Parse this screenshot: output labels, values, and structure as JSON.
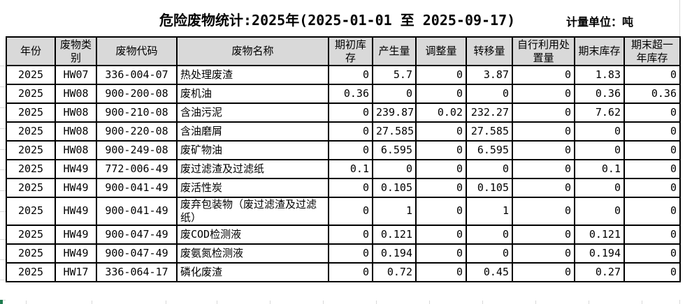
{
  "title": "危险废物统计:2025年(2025-01-01 至 2025-09-17)",
  "unit_label": "计量单位：吨",
  "table": {
    "columns": [
      "年份",
      "废物类别",
      "废物代码",
      "废物名称",
      "期初库存",
      "产生量",
      "调整量",
      "转移量",
      "自行利用处置量",
      "期末库存",
      "期末超一年库存"
    ],
    "rows": [
      {
        "year": "2025",
        "category": "HW07",
        "code": "336-004-07",
        "name": "热处理废渣",
        "values": [
          "0",
          "5.7",
          "0",
          "3.87",
          "0",
          "1.83",
          "0"
        ]
      },
      {
        "year": "2025",
        "category": "HW08",
        "code": "900-200-08",
        "name": "废机油",
        "values": [
          "0.36",
          "0",
          "0",
          "0",
          "0",
          "0.36",
          "0.36"
        ]
      },
      {
        "year": "2025",
        "category": "HW08",
        "code": "900-210-08",
        "name": "含油污泥",
        "values": [
          "0",
          "239.87",
          "0.02",
          "232.27",
          "0",
          "7.62",
          "0"
        ]
      },
      {
        "year": "2025",
        "category": "HW08",
        "code": "900-220-08",
        "name": "含油磨屑",
        "values": [
          "0",
          "27.585",
          "0",
          "27.585",
          "0",
          "0",
          "0"
        ]
      },
      {
        "year": "2025",
        "category": "HW08",
        "code": "900-249-08",
        "name": "废矿物油",
        "values": [
          "0",
          "6.595",
          "0",
          "6.595",
          "0",
          "0",
          "0"
        ]
      },
      {
        "year": "2025",
        "category": "HW49",
        "code": "772-006-49",
        "name": "废过滤渣及过滤纸",
        "values": [
          "0.1",
          "0",
          "0",
          "0",
          "0",
          "0.1",
          "0"
        ]
      },
      {
        "year": "2025",
        "category": "HW49",
        "code": "900-041-49",
        "name": "废活性炭",
        "values": [
          "0",
          "0.105",
          "0",
          "0.105",
          "0",
          "0",
          "0"
        ]
      },
      {
        "year": "2025",
        "category": "HW49",
        "code": "900-041-49",
        "name": "废弃包装物（废过滤渣及过滤纸）",
        "values": [
          "0",
          "1",
          "0",
          "1",
          "0",
          "0",
          "0"
        ]
      },
      {
        "year": "2025",
        "category": "HW49",
        "code": "900-047-49",
        "name": "废COD检测液",
        "values": [
          "0",
          "0.121",
          "0",
          "0",
          "0",
          "0.121",
          "0"
        ]
      },
      {
        "year": "2025",
        "category": "HW49",
        "code": "900-047-49",
        "name": "废氨氮检测液",
        "values": [
          "0",
          "0.194",
          "0",
          "0",
          "0",
          "0.194",
          "0"
        ]
      },
      {
        "year": "2025",
        "category": "HW17",
        "code": "336-064-17",
        "name": "磷化废渣",
        "values": [
          "0",
          "0.72",
          "0",
          "0.45",
          "0",
          "0.27",
          "0"
        ]
      }
    ]
  },
  "colors": {
    "header_bg": "#d9d9d9",
    "border": "#000000",
    "grid_line": "#d9d9d9",
    "selection_green": "#1e7b4e"
  }
}
